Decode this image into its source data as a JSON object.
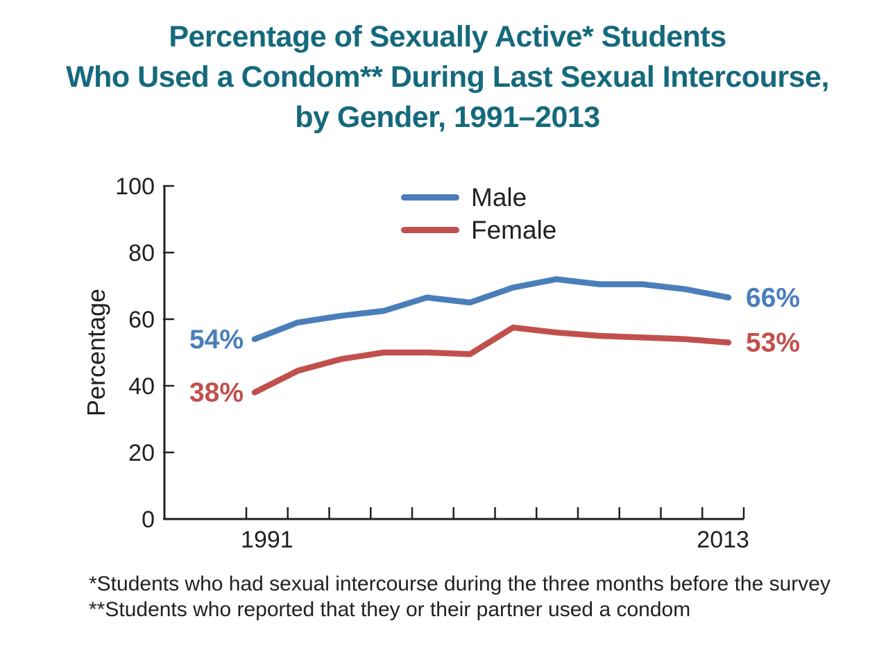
{
  "title": {
    "line1": "Percentage of Sexually Active* Students",
    "line2": "Who Used a Condom** During Last Sexual Intercourse,",
    "line3": "by Gender, 1991–2013",
    "color": "#15697C"
  },
  "legend": {
    "items": [
      {
        "label": "Male",
        "color": "#4A7EBB"
      },
      {
        "label": "Female",
        "color": "#C1504D"
      }
    ]
  },
  "chart_data": {
    "type": "line",
    "title": "Percentage of Sexually Active* Students Who Used a Condom** During Last Sexual Intercourse, by Gender, 1991–2013",
    "x": [
      1991,
      1993,
      1995,
      1997,
      1999,
      2001,
      2003,
      2005,
      2007,
      2009,
      2011,
      2013
    ],
    "series": [
      {
        "name": "Male",
        "color": "#4A7EBB",
        "values": [
          54,
          59,
          61,
          62.5,
          66.5,
          65,
          69.5,
          72,
          70.5,
          70.5,
          69,
          66.5
        ],
        "start_label": "54%",
        "end_label": "66%"
      },
      {
        "name": "Female",
        "color": "#C1504D",
        "values": [
          38,
          44.5,
          48,
          50,
          50,
          49.5,
          57.5,
          56,
          55,
          54.5,
          54,
          53
        ],
        "start_label": "38%",
        "end_label": "53%"
      }
    ],
    "xlabel": "",
    "ylabel": "Percentage",
    "ylim": [
      0,
      100
    ],
    "yticks": [
      0,
      20,
      40,
      60,
      80,
      100
    ],
    "xtick_labels_shown": [
      "1991",
      "2013"
    ],
    "grid": false,
    "legend_position": "top-center-inside"
  },
  "footnotes": [
    "*Students who had sexual intercourse during the three months before the survey",
    "**Students who reported that they or their partner used a condom"
  ],
  "colors": {
    "text": "#231F20",
    "axis": "#231F20",
    "background": "#FFFFFF"
  }
}
